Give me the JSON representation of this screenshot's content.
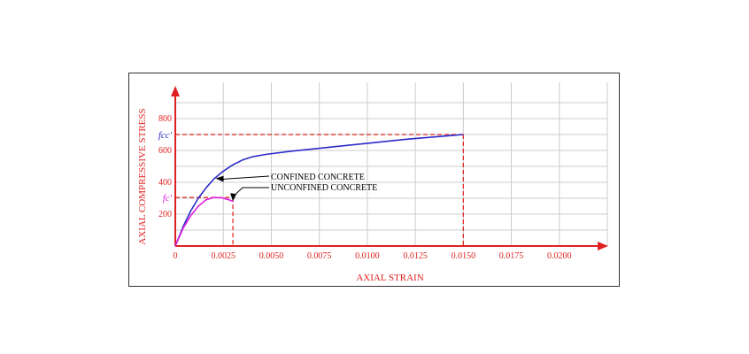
{
  "chart_data": {
    "type": "line",
    "xlabel": "AXIAL STRAIN",
    "ylabel": "AXIAL COMPRESSIVE STRESS",
    "xlim": [
      0,
      0.0225
    ],
    "ylim": [
      0,
      900
    ],
    "x_ticks": [
      "0",
      "0.0025",
      "0.0050",
      "0.0075",
      "0.0100",
      "0.0125",
      "0.0150",
      "0.0175",
      "0.0200"
    ],
    "x_tick_values": [
      0,
      0.0025,
      0.005,
      0.0075,
      0.01,
      0.0125,
      0.015,
      0.0175,
      0.02
    ],
    "y_ticks": [
      "200",
      "400",
      "600",
      "800"
    ],
    "y_tick_values": [
      200,
      400,
      600,
      800
    ],
    "grid": true,
    "series": [
      {
        "name": "CONFINED CONCRETE",
        "color": "#2b2bc8",
        "x": [
          0,
          0.0004,
          0.0008,
          0.0012,
          0.0016,
          0.002,
          0.0025,
          0.003,
          0.0035,
          0.004,
          0.0047,
          0.006,
          0.008,
          0.01,
          0.012,
          0.015
        ],
        "y": [
          0,
          120,
          220,
          300,
          365,
          420,
          470,
          510,
          540,
          560,
          575,
          595,
          620,
          645,
          670,
          700
        ]
      },
      {
        "name": "UNCONFINED CONCRETE",
        "color": "#e020e0",
        "x": [
          0,
          0.0004,
          0.0008,
          0.0012,
          0.0016,
          0.002,
          0.0024,
          0.0028,
          0.003
        ],
        "y": [
          0,
          110,
          190,
          250,
          290,
          305,
          303,
          290,
          280
        ]
      }
    ],
    "annotations": [
      {
        "label": "fcc'",
        "value": 700,
        "strain": 0.015,
        "color": "#2b2bc8"
      },
      {
        "label": "fc'",
        "value": 305,
        "strain": 0.003,
        "color": "#e020e0"
      }
    ],
    "callouts": {
      "confined": {
        "text": "CONFINED CONCRETE",
        "at": [
          0.0021,
          430
        ]
      },
      "unconfined": {
        "text": "UNCONFINED CONCRETE",
        "at": [
          0.003,
          282
        ]
      }
    },
    "axis_color": "#e02020",
    "grid_color": "#cccccc",
    "guide_color": "#e02020"
  }
}
